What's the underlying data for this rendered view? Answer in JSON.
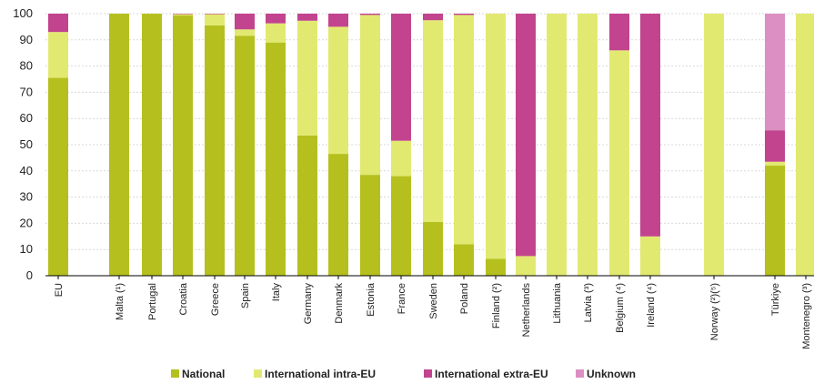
{
  "chart_data": {
    "type": "bar",
    "stacked": true,
    "categories": [
      "EU",
      "Malta (¹)",
      "Portugal",
      "Croatia",
      "Greece",
      "Spain",
      "Italy",
      "Germany",
      "Denmark",
      "Estonia",
      "France",
      "Sweden",
      "Poland",
      "Finland (²)",
      "Netherlands",
      "Lithuania",
      "Latvia (³)",
      "Belgium (⁴)",
      "Ireland (⁴)",
      "Norway (²)(⁵)",
      "Türkiye",
      "Montenegro (³)"
    ],
    "series": [
      {
        "name": "National",
        "color": "#b5c01e",
        "values": [
          75.5,
          100,
          100,
          99.3,
          95.5,
          91.5,
          89,
          53.5,
          46.5,
          38.5,
          38,
          20.5,
          12,
          6.5,
          0,
          0,
          0,
          0,
          0,
          0,
          42,
          0
        ]
      },
      {
        "name": "International intra-EU",
        "color": "#e2e971",
        "values": [
          17.5,
          0,
          0,
          0.5,
          4.3,
          2.5,
          7.3,
          43.8,
          48.5,
          61,
          13.5,
          77,
          87.5,
          93.5,
          7.5,
          100,
          100,
          86,
          15,
          100,
          1.5,
          100
        ]
      },
      {
        "name": "International extra-EU",
        "color": "#c2448e",
        "values": [
          7,
          0,
          0,
          0.2,
          0.2,
          6,
          3.7,
          2.7,
          5,
          0.5,
          48.5,
          2.5,
          0.5,
          0,
          92.5,
          0,
          0,
          14,
          85,
          0,
          12,
          0
        ]
      },
      {
        "name": "Unknown",
        "color": "#dc8fc2",
        "values": [
          0,
          0,
          0,
          0,
          0,
          0,
          0,
          0,
          0,
          0,
          0,
          0,
          0,
          0,
          0,
          0,
          0,
          0,
          0,
          0,
          44.5,
          0
        ]
      }
    ],
    "ylim": [
      0,
      100
    ],
    "yticks": [
      0,
      10,
      20,
      30,
      40,
      50,
      60,
      70,
      80,
      90,
      100
    ],
    "grid": true,
    "legend_position": "bottom"
  }
}
